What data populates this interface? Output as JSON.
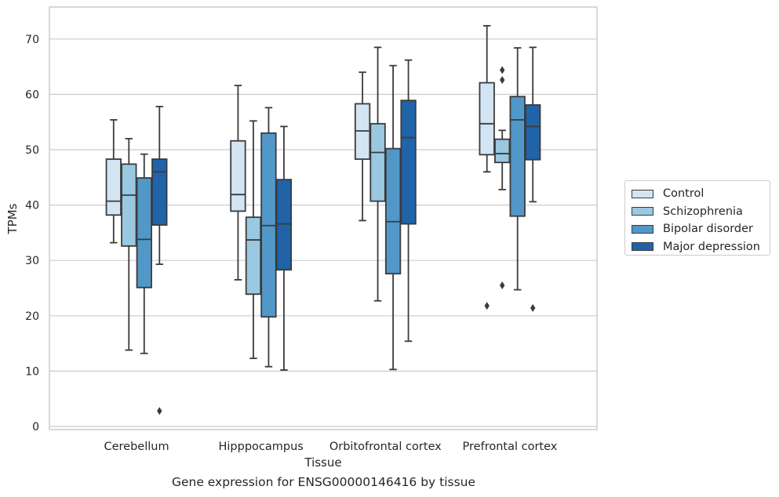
{
  "caption": "Gene expression for ENSG00000146416 by tissue",
  "chart_data": {
    "type": "box",
    "xlabel": "Tissue",
    "ylabel": "TPMs",
    "ylim": [
      -0.5,
      76
    ],
    "yticks": [
      0,
      10,
      20,
      30,
      40,
      50,
      60,
      70
    ],
    "grid": "y",
    "legend_position": "right",
    "categories": [
      "Cerebellum",
      "Hipppocampus",
      "Orbitofrontal cortex",
      "Prefrontal cortex"
    ],
    "series": [
      {
        "name": "Control",
        "color": "#d3e4f3",
        "boxes": [
          {
            "whislo": 33.2,
            "q1": 38.2,
            "med": 40.7,
            "q3": 48.3,
            "whishi": 55.4,
            "fliers": []
          },
          {
            "whislo": 26.5,
            "q1": 38.9,
            "med": 41.9,
            "q3": 51.6,
            "whishi": 61.6,
            "fliers": []
          },
          {
            "whislo": 37.2,
            "q1": 48.3,
            "med": 53.4,
            "q3": 58.3,
            "whishi": 64.0,
            "fliers": []
          },
          {
            "whislo": 46.0,
            "q1": 49.1,
            "med": 54.7,
            "q3": 62.1,
            "whishi": 72.4,
            "fliers": [
              21.8
            ]
          }
        ]
      },
      {
        "name": "Schizophrenia",
        "color": "#9ac8e0",
        "boxes": [
          {
            "whislo": 13.8,
            "q1": 32.6,
            "med": 41.8,
            "q3": 47.4,
            "whishi": 52.0,
            "fliers": []
          },
          {
            "whislo": 12.3,
            "q1": 23.9,
            "med": 33.7,
            "q3": 37.8,
            "whishi": 55.2,
            "fliers": []
          },
          {
            "whislo": 22.7,
            "q1": 40.7,
            "med": 49.5,
            "q3": 54.7,
            "whishi": 68.5,
            "fliers": []
          },
          {
            "whislo": 42.8,
            "q1": 47.7,
            "med": 49.3,
            "q3": 51.9,
            "whishi": 53.5,
            "fliers": [
              25.5,
              62.6,
              64.4
            ]
          }
        ]
      },
      {
        "name": "Bipolar disorder",
        "color": "#5198c8",
        "boxes": [
          {
            "whislo": 13.2,
            "q1": 25.1,
            "med": 33.8,
            "q3": 44.9,
            "whishi": 49.2,
            "fliers": []
          },
          {
            "whislo": 10.8,
            "q1": 19.8,
            "med": 36.3,
            "q3": 53.0,
            "whishi": 57.6,
            "fliers": []
          },
          {
            "whislo": 10.3,
            "q1": 27.6,
            "med": 37.0,
            "q3": 50.2,
            "whishi": 65.2,
            "fliers": []
          },
          {
            "whislo": 24.7,
            "q1": 38.0,
            "med": 55.4,
            "q3": 59.6,
            "whishi": 68.4,
            "fliers": []
          }
        ]
      },
      {
        "name": "Major depression",
        "color": "#2163a9",
        "boxes": [
          {
            "whislo": 29.3,
            "q1": 36.4,
            "med": 46.0,
            "q3": 48.3,
            "whishi": 57.8,
            "fliers": [
              2.8
            ]
          },
          {
            "whislo": 10.2,
            "q1": 28.3,
            "med": 36.6,
            "q3": 44.6,
            "whishi": 54.2,
            "fliers": []
          },
          {
            "whislo": 15.4,
            "q1": 36.6,
            "med": 52.2,
            "q3": 58.9,
            "whishi": 66.2,
            "fliers": []
          },
          {
            "whislo": 40.6,
            "q1": 48.2,
            "med": 54.2,
            "q3": 58.1,
            "whishi": 68.5,
            "fliers": [
              21.4
            ]
          }
        ]
      }
    ]
  }
}
